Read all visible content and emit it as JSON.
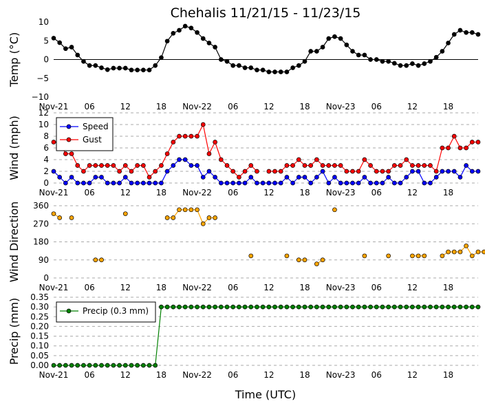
{
  "chart_data": {
    "title": "Chehalis 11/21/15 - 11/23/15",
    "xlabel": "Time (UTC)",
    "x_unit": "hours since 2015-11-21 00:00 UTC",
    "x_ticks": [
      {
        "x": 0,
        "label": "Nov-21"
      },
      {
        "x": 6,
        "label": "06"
      },
      {
        "x": 12,
        "label": "12"
      },
      {
        "x": 18,
        "label": "18"
      },
      {
        "x": 24,
        "label": "Nov-22"
      },
      {
        "x": 30,
        "label": "06"
      },
      {
        "x": 36,
        "label": "12"
      },
      {
        "x": 42,
        "label": "18"
      },
      {
        "x": 48,
        "label": "Nov-23"
      },
      {
        "x": 54,
        "label": "06"
      },
      {
        "x": 60,
        "label": "12"
      },
      {
        "x": 66,
        "label": "18"
      }
    ],
    "x_range": [
      0,
      71
    ],
    "panels": [
      {
        "type": "line",
        "ylabel": "Temp (°C)",
        "ylim": [
          -10,
          10
        ],
        "yticks": [
          "10",
          "5",
          "0",
          "−5",
          "−10"
        ],
        "ytick_values": [
          10,
          5,
          0,
          -5,
          -10
        ],
        "zero_line": true,
        "grid": false,
        "series": [
          {
            "color": "#000000",
            "line": true,
            "values": [
              5.7,
              4.5,
              2.9,
              3.3,
              1.2,
              -0.5,
              -1.6,
              -1.6,
              -2.2,
              -2.7,
              -2.3,
              -2.3,
              -2.3,
              -2.8,
              -2.8,
              -2.8,
              -2.8,
              -1.6,
              0.5,
              4.9,
              7.0,
              7.8,
              8.9,
              8.4,
              7.2,
              5.6,
              4.4,
              3.3,
              0.0,
              -0.5,
              -1.6,
              -1.6,
              -2.2,
              -2.2,
              -2.8,
              -2.8,
              -3.3,
              -3.3,
              -3.3,
              -3.3,
              -2.2,
              -1.6,
              -0.5,
              2.2,
              2.2,
              3.3,
              5.6,
              6.1,
              5.6,
              3.9,
              2.2,
              1.2,
              1.2,
              0.0,
              0.0,
              -0.5,
              -0.5,
              -1.0,
              -1.6,
              -1.6,
              -1.1,
              -1.6,
              -1.1,
              -0.5,
              0.6,
              2.2,
              4.4,
              6.7,
              7.8,
              7.2,
              7.2,
              6.7
            ]
          }
        ]
      },
      {
        "type": "line",
        "ylabel": "Wind (mph)",
        "ylim": [
          0,
          12
        ],
        "yticks": [
          "12",
          "10",
          "8",
          "6",
          "4",
          "2",
          "0"
        ],
        "ytick_values": [
          12,
          10,
          8,
          6,
          4,
          2,
          0
        ],
        "grid": true,
        "legend": {
          "position": "upper-left",
          "entries": [
            "Speed",
            "Gust"
          ]
        },
        "series": [
          {
            "name": "Speed",
            "color": "#0000ff",
            "line": true,
            "values": [
              2,
              1,
              0,
              1,
              0,
              0,
              0,
              1,
              1,
              0,
              0,
              0,
              1,
              0,
              0,
              0,
              0,
              0,
              0,
              2,
              3,
              4,
              4,
              3,
              3,
              1,
              2,
              1,
              0,
              0,
              0,
              0,
              0,
              1,
              0,
              0,
              0,
              0,
              0,
              1,
              0,
              1,
              1,
              0,
              1,
              2,
              0,
              1,
              0,
              0,
              0,
              0,
              1,
              0,
              0,
              0,
              1,
              0,
              0,
              1,
              2,
              2,
              0,
              0,
              1,
              2,
              2,
              2,
              1,
              3,
              2,
              2
            ]
          },
          {
            "name": "Gust",
            "color": "#ff0000",
            "line": true,
            "values": [
              7,
              7,
              5,
              5,
              3,
              2,
              3,
              3,
              3,
              3,
              3,
              2,
              3,
              2,
              3,
              3,
              1,
              2,
              3,
              5,
              7,
              8,
              8,
              8,
              8,
              10,
              5,
              7,
              4,
              3,
              2,
              1,
              2,
              3,
              2,
              null,
              2,
              2,
              2,
              3,
              3,
              4,
              3,
              3,
              4,
              3,
              3,
              3,
              3,
              2,
              2,
              2,
              4,
              3,
              2,
              2,
              2,
              3,
              3,
              4,
              3,
              3,
              3,
              3,
              2,
              6,
              6,
              8,
              6,
              6,
              7,
              7
            ]
          }
        ]
      },
      {
        "type": "scatter",
        "ylabel": "Wind Direction",
        "ylim": [
          0,
          360
        ],
        "yticks": [
          "360",
          "270",
          "180",
          "90",
          "0"
        ],
        "ytick_values": [
          360,
          270,
          180,
          90,
          0
        ],
        "grid": true,
        "series": [
          {
            "color": "#ffa500",
            "line": true,
            "points": [
              [
                0,
                320
              ],
              [
                1,
                300
              ],
              [
                3,
                300
              ],
              [
                7,
                90
              ],
              [
                8,
                90
              ],
              [
                12,
                320
              ],
              [
                19,
                300
              ],
              [
                20,
                300
              ],
              [
                21,
                340
              ],
              [
                22,
                340
              ],
              [
                23,
                340
              ],
              [
                24,
                340
              ],
              [
                25,
                270
              ],
              [
                26,
                300
              ],
              [
                27,
                300
              ],
              [
                33,
                110
              ],
              [
                39,
                110
              ],
              [
                41,
                90
              ],
              [
                42,
                90
              ],
              [
                44,
                70
              ],
              [
                45,
                90
              ],
              [
                47,
                340
              ],
              [
                52,
                110
              ],
              [
                56,
                110
              ],
              [
                60,
                110
              ],
              [
                61,
                110
              ],
              [
                62,
                110
              ],
              [
                65,
                110
              ],
              [
                66,
                130
              ],
              [
                67,
                130
              ],
              [
                68,
                130
              ],
              [
                69,
                160
              ],
              [
                70,
                110
              ],
              [
                71,
                130
              ],
              [
                72,
                130
              ]
            ]
          }
        ]
      },
      {
        "type": "line",
        "ylabel": "Precip (mm)",
        "ylim": [
          0,
          0.35
        ],
        "yticks": [
          "0.35",
          "0.30",
          "0.25",
          "0.20",
          "0.15",
          "0.10",
          "0.05",
          "0.00"
        ],
        "ytick_values": [
          0.35,
          0.3,
          0.25,
          0.2,
          0.15,
          0.1,
          0.05,
          0.0
        ],
        "grid": true,
        "legend": {
          "position": "upper-left",
          "entries": [
            "Precip (0.3 mm)"
          ]
        },
        "series": [
          {
            "name": "Precip (0.3 mm)",
            "color": "#008000",
            "line": true,
            "first_value": 0.0,
            "switch_index": 18,
            "after_value": 0.3,
            "count": 72
          }
        ]
      }
    ]
  }
}
